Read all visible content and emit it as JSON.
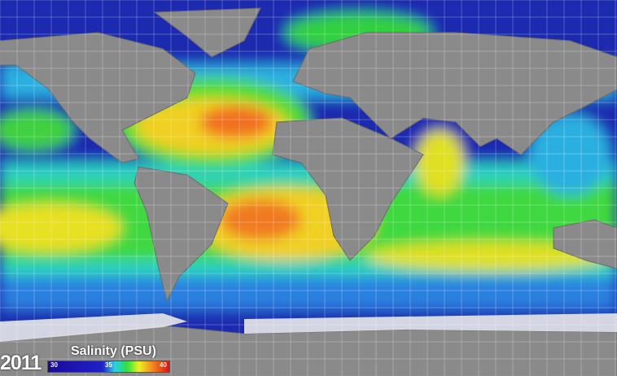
{
  "year": "2011",
  "legend": {
    "title": "Salinity (PSU)",
    "min_label": "30",
    "mid_label": "35",
    "max_label": "40",
    "colors": [
      "#1a0a9a",
      "#1e22c8",
      "#2ad0e8",
      "#2ee040",
      "#f0f020",
      "#f08020",
      "#e01010"
    ]
  },
  "colors": {
    "land": "#8a8a8a",
    "ice": "#e8e8e8",
    "ocean_low": "#1a2ab0",
    "ocean_mid": "#30d040",
    "ocean_high": "#f07020"
  }
}
